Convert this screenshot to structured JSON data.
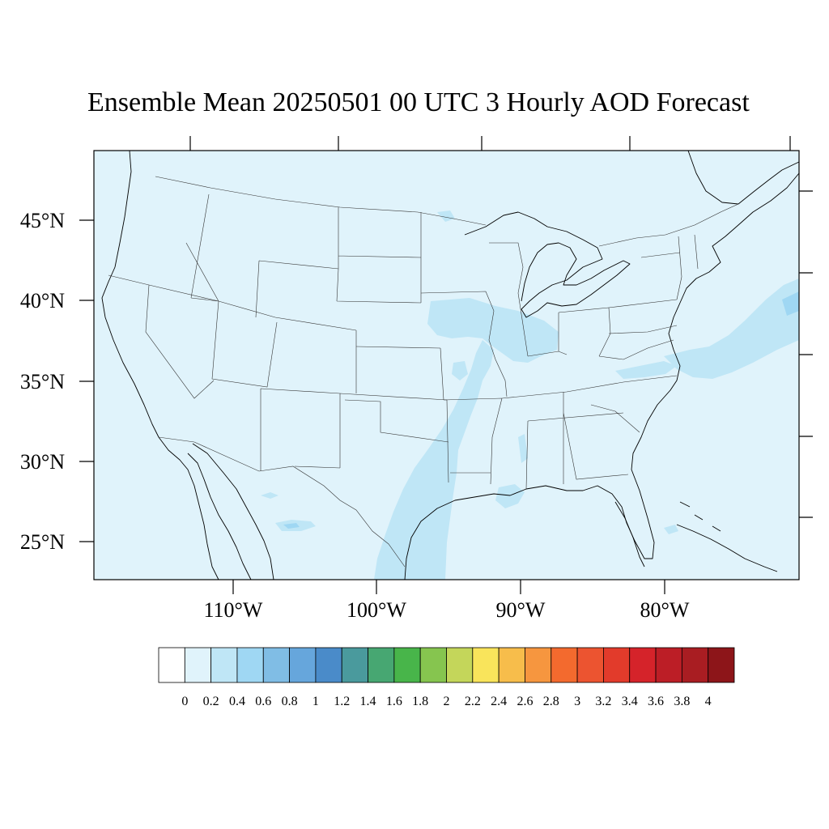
{
  "title": "Ensemble Mean 20250501 00 UTC 3 Hourly AOD Forecast",
  "map": {
    "background_color": "#e0f3fb",
    "lat_labels": [
      "45°N",
      "40°N",
      "35°N",
      "30°N",
      "25°N"
    ],
    "lon_labels": [
      "110°W",
      "100°W",
      "90°W",
      "80°W"
    ]
  },
  "colorbar": {
    "colors": [
      "#ffffff",
      "#e0f3fb",
      "#bfe6f6",
      "#9fd7f3",
      "#80bde5",
      "#66a6dc",
      "#4a8bc9",
      "#4a9a9d",
      "#47a772",
      "#48b54a",
      "#86c54f",
      "#c4d65a",
      "#f9e45b",
      "#f7bd4b",
      "#f6963f",
      "#f36a2e",
      "#ec5430",
      "#e23b2b",
      "#d5232a",
      "#bc1e26",
      "#a91d22",
      "#8d1519"
    ],
    "labels": [
      "0",
      "0.2",
      "0.4",
      "0.6",
      "0.8",
      "1",
      "1.2",
      "1.4",
      "1.6",
      "1.8",
      "2",
      "2.2",
      "2.4",
      "2.6",
      "2.8",
      "3",
      "3.2",
      "3.4",
      "3.6",
      "3.8",
      "4"
    ]
  }
}
